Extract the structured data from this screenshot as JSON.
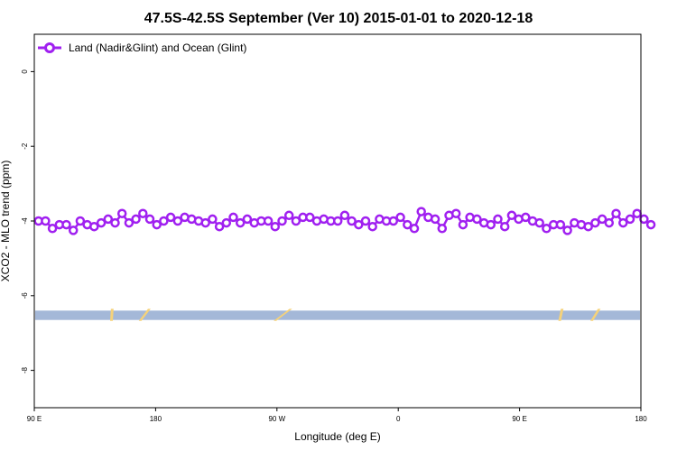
{
  "chart_data": {
    "type": "line",
    "title": "47.5S-42.5S September (Ver 10)   2015-01-01 to 2020-12-18",
    "xlabel": "Longitude (deg E)",
    "ylabel": "XCO2 - MLO trend (ppm)",
    "xlim": [
      90,
      450
    ],
    "ylim": [
      -9,
      1
    ],
    "x_ticks": [
      {
        "value": 90,
        "label": "90 E"
      },
      {
        "value": 162,
        "label": "180"
      },
      {
        "value": 234,
        "label": "90 W"
      },
      {
        "value": 306,
        "label": "0"
      },
      {
        "value": 378,
        "label": "90 E"
      },
      {
        "value": 450,
        "label": "180"
      }
    ],
    "y_ticks": [
      {
        "value": 0,
        "label": "0"
      },
      {
        "value": -2,
        "label": "-2"
      },
      {
        "value": -4,
        "label": "-4"
      },
      {
        "value": -6,
        "label": "-6"
      },
      {
        "value": -8,
        "label": "-8"
      }
    ],
    "legend": {
      "position": "top-left"
    },
    "series": [
      {
        "name": "Land (Nadir&Glint) and Ocean (Glint)",
        "color": "#a020f0",
        "x_start": 92.5,
        "x_step": 4.13,
        "values": [
          -4.0,
          -4.0,
          -4.2,
          -4.1,
          -4.1,
          -4.25,
          -4.0,
          -4.1,
          -4.15,
          -4.05,
          -3.95,
          -4.05,
          -3.8,
          -4.05,
          -3.95,
          -3.8,
          -3.95,
          -4.1,
          -4.0,
          -3.9,
          -4.0,
          -3.9,
          -3.95,
          -4.0,
          -4.05,
          -3.95,
          -4.15,
          -4.05,
          -3.9,
          -4.05,
          -3.95,
          -4.05,
          -4.0,
          -4.0,
          -4.15,
          -4.0,
          -3.85,
          -4.0,
          -3.9,
          -3.9,
          -4.0,
          -3.95,
          -4.0,
          -4.0,
          -3.85,
          -4.0,
          -4.1,
          -4.0,
          -4.15,
          -3.95,
          -4.0,
          -4.0,
          -3.9,
          -4.1,
          -4.2,
          -3.75,
          -3.9,
          -3.95,
          -4.2,
          -3.85,
          -3.8,
          -4.1,
          -3.9,
          -3.95,
          -4.05,
          -4.1,
          -3.95,
          -4.15,
          -3.85,
          -3.95,
          -3.9,
          -4.0,
          -4.05,
          -4.2,
          -4.1,
          -4.1,
          -4.25,
          -4.05,
          -4.1,
          -4.15,
          -4.05,
          -3.95,
          -4.05,
          -3.8,
          -4.05,
          -3.95,
          -3.8,
          -3.95,
          -4.1
        ]
      }
    ],
    "map_band": {
      "y_range": [
        -6.4,
        -6.65
      ],
      "ocean_color": "#a4b8d8",
      "land_color": "#f5d27a",
      "land_segments": [
        [
          135,
          136
        ],
        [
          152,
          158
        ],
        [
          232,
          242
        ],
        [
          401,
          403
        ],
        [
          420,
          425
        ]
      ]
    }
  }
}
